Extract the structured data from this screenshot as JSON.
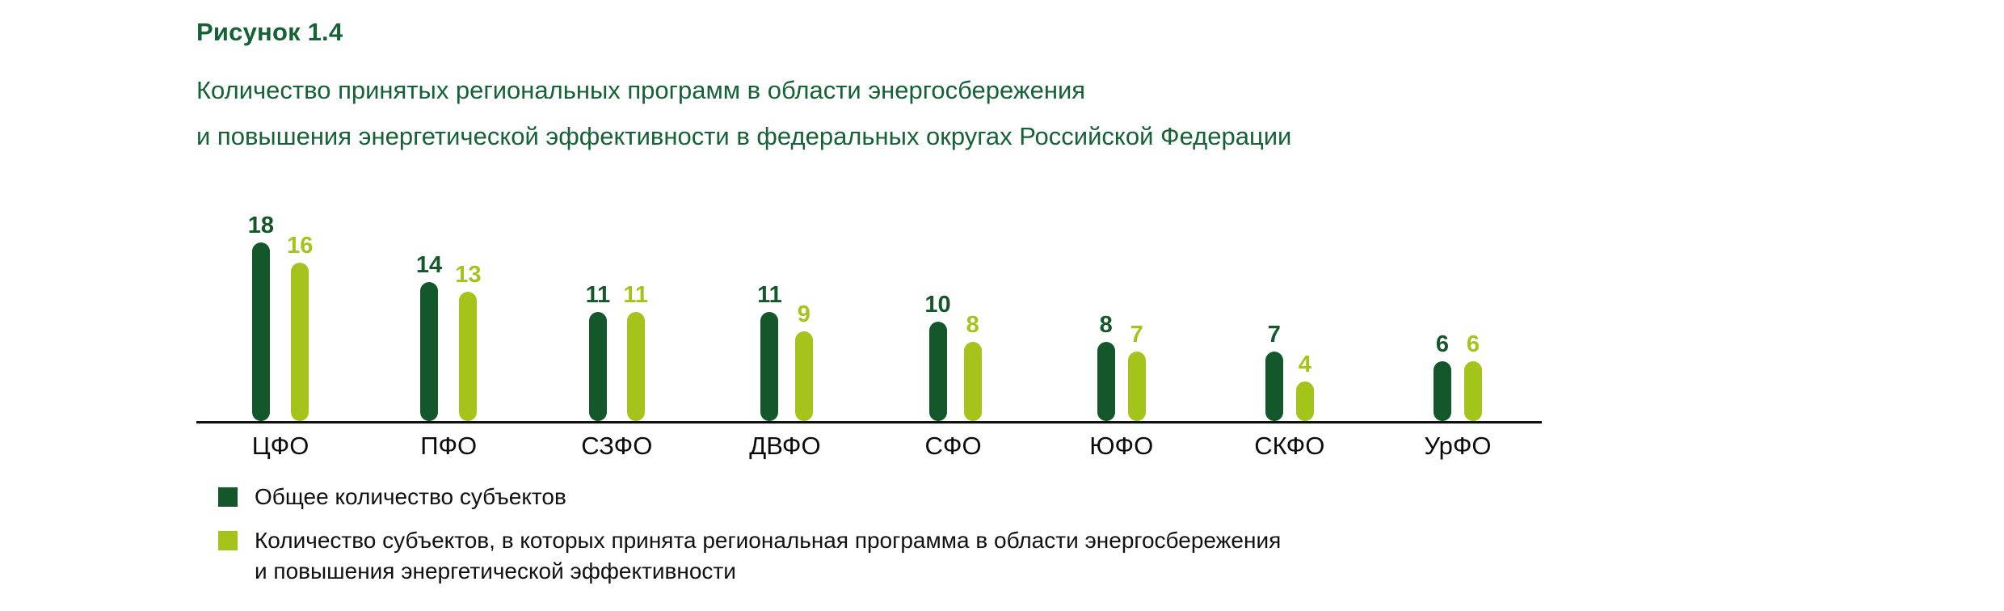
{
  "figure": {
    "label": "Рисунок 1.4",
    "title_line1": "Количество принятых региональных программ в области энергосбережения",
    "title_line2": "и повышения энергетической эффективности в федеральных округах Российской Федерации"
  },
  "colors": {
    "dark_green": "#14572B",
    "light_green": "#A4C41C",
    "heading_green": "#156236",
    "axis_black": "#111111"
  },
  "chart_data": {
    "type": "bar",
    "categories": [
      "ЦФО",
      "ПФО",
      "СЗФО",
      "ДВФО",
      "СФО",
      "ЮФО",
      "СКФО",
      "УрФО"
    ],
    "series": [
      {
        "name": "Общее количество субъектов",
        "color_key": "dark_green",
        "values": [
          18,
          14,
          11,
          11,
          10,
          8,
          7,
          6
        ]
      },
      {
        "name": "Количество субъектов, в которых принята региональная программа в области энергосбережения и повышения энергетической эффективности",
        "color_key": "light_green",
        "values": [
          16,
          13,
          11,
          9,
          8,
          7,
          4,
          6
        ]
      }
    ],
    "ylim": [
      0,
      18
    ],
    "grid": false,
    "value_labels": true,
    "legend_position": "bottom",
    "xlabel": "",
    "ylabel": ""
  },
  "legend": {
    "items": [
      {
        "label": "Общее количество субъектов",
        "color_key": "dark_green"
      },
      {
        "label": "Количество субъектов, в которых принята региональная программа в области энергосбережения\nи повышения энергетической эффективности",
        "color_key": "light_green"
      }
    ]
  }
}
